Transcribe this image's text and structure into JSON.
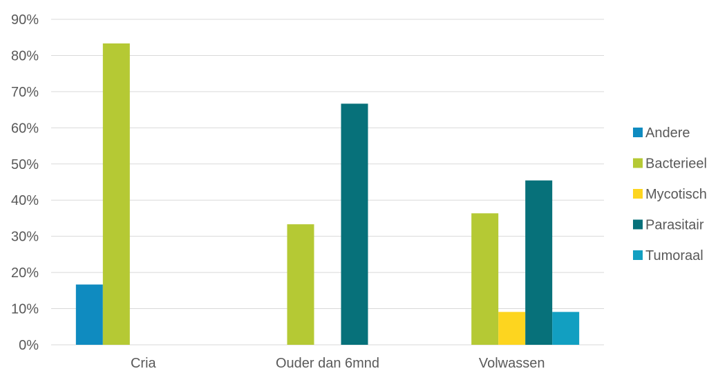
{
  "chart_data": {
    "type": "bar",
    "categories": [
      "Cria",
      "Ouder dan 6mnd",
      "Volwassen"
    ],
    "series": [
      {
        "name": "Andere",
        "color": "#0f8bc0",
        "values": [
          0.1667,
          0,
          0
        ]
      },
      {
        "name": "Bacterieel",
        "color": "#b5c934",
        "values": [
          0.8333,
          0.3333,
          0.3636
        ]
      },
      {
        "name": "Mycotisch",
        "color": "#fdd51f",
        "values": [
          0,
          0,
          0.0909
        ]
      },
      {
        "name": "Parasitair",
        "color": "#07717a",
        "values": [
          0,
          0.6667,
          0.4545
        ]
      },
      {
        "name": "Tumoraal",
        "color": "#129fc1",
        "values": [
          0,
          0,
          0.0909
        ]
      }
    ],
    "ylim": [
      0,
      0.9
    ],
    "yticks": [
      "0%",
      "10%",
      "20%",
      "30%",
      "40%",
      "50%",
      "60%",
      "70%",
      "80%",
      "90%"
    ],
    "grid": true,
    "legend_position": "right"
  }
}
